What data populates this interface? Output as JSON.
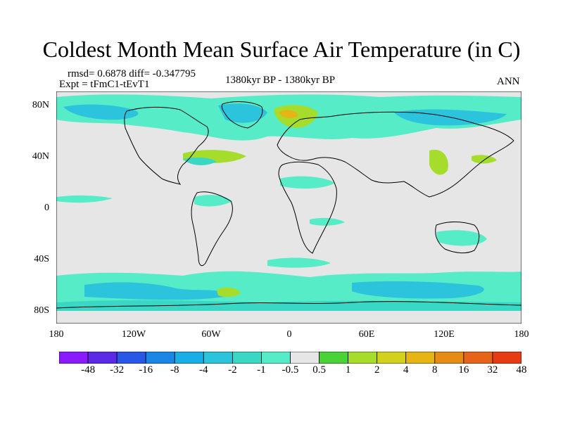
{
  "title": "Coldest Month Mean Surface Air Temperature (in C)",
  "stats": "rmsd= 0.6878 diff= -0.347795",
  "expt": "Expt = tFmC1-tEvT1",
  "period": "1380kyr BP - 1380kyr BP",
  "season": "ANN",
  "lat_labels": [
    "80N",
    "40N",
    "0",
    "40S",
    "80S"
  ],
  "lon_labels": [
    "180",
    "120W",
    "60W",
    "0",
    "60E",
    "120E",
    "180"
  ],
  "colorbar": {
    "colors": [
      "#8c1aff",
      "#5a2ae6",
      "#2a58e6",
      "#1a86e6",
      "#19aee6",
      "#2cc4dc",
      "#3ad8c4",
      "#56ecc8",
      "#e6e6e6",
      "#4ad238",
      "#a6dc2c",
      "#d2d21e",
      "#e6b414",
      "#e68c14",
      "#e6641a",
      "#e63c14"
    ],
    "labels": [
      "-48",
      "-32",
      "-16",
      "-8",
      "-4",
      "-2",
      "-1",
      "-0.5",
      "0.5",
      "1",
      "2",
      "4",
      "8",
      "16",
      "32",
      "48"
    ]
  }
}
